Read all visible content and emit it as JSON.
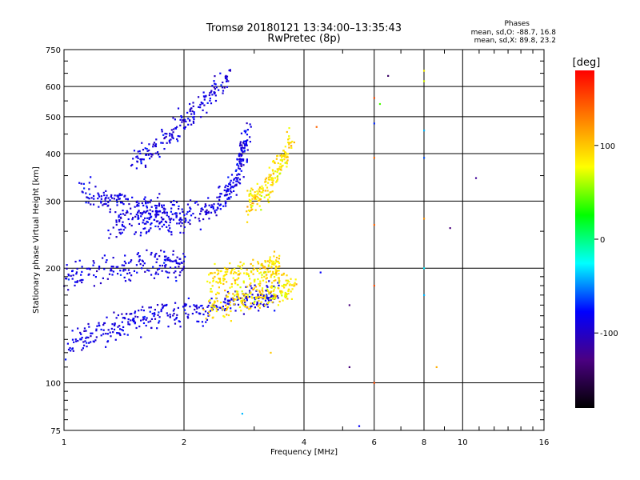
{
  "chart_data": {
    "type": "scatter",
    "title": "Tromsø 20180121 13:34:00–13:35:43",
    "subtitle": "RwPretec (8p)",
    "xlabel": "Frequency [MHz]",
    "ylabel": "Stationary phase Virtual Height [km]",
    "x_scale": "log",
    "y_scale": "log",
    "xlim": [
      1,
      16
    ],
    "ylim": [
      75,
      750
    ],
    "x_ticks": [
      1,
      2,
      4,
      6,
      8,
      10,
      16
    ],
    "y_ticks": [
      75,
      100,
      200,
      300,
      400,
      500,
      600,
      750
    ],
    "grid": true,
    "legend": {
      "heading": "Phases",
      "line1": "mean, sd,O: -88.7, 16.8",
      "line2": "mean, sd,X:  89.8, 23.2",
      "placement": "top-right"
    },
    "colorbar": {
      "label": "[deg]",
      "range": [
        -180,
        180
      ],
      "ticks": [
        -100,
        0,
        100
      ],
      "colors": [
        "#000000",
        "#4b0082",
        "#0000ff",
        "#00ffff",
        "#00ff00",
        "#ffff00",
        "#ff8000",
        "#ff0000"
      ]
    },
    "series": [
      {
        "mode": "O",
        "phase_mean": -88.7,
        "phase_sd": 16.8,
        "traces": [
          {
            "x": [
              1.0,
              1.2,
              1.4,
              1.6,
              1.9,
              2.3,
              2.7,
              3.1,
              3.4
            ],
            "y": [
              125,
              135,
              142,
              148,
              152,
              157,
              163,
              168,
              172
            ]
          },
          {
            "x": [
              1.0,
              1.2,
              1.5,
              1.8,
              2.0
            ],
            "y": [
              190,
              197,
              202,
              205,
              205
            ]
          },
          {
            "x": [
              1.3,
              1.6,
              1.9,
              2.2,
              2.5,
              2.7,
              2.8,
              2.9
            ],
            "y": [
              260,
              263,
              270,
              280,
              300,
              340,
              400,
              460
            ]
          },
          {
            "x": [
              1.1,
              1.3,
              1.5,
              1.7,
              1.9
            ],
            "y": [
              320,
              300,
              290,
              285,
              280
            ]
          },
          {
            "x": [
              1.5,
              1.7,
              2.0,
              2.3,
              2.6
            ],
            "y": [
              380,
              420,
              480,
              560,
              630
            ]
          }
        ]
      },
      {
        "mode": "X",
        "phase_mean": 89.8,
        "phase_sd": 23.2,
        "traces": [
          {
            "x": [
              2.3,
              2.6,
              2.9,
              3.2,
              3.5,
              3.8
            ],
            "y": [
              158,
              163,
              167,
              171,
              176,
              180
            ]
          },
          {
            "x": [
              2.3,
              2.6,
              3.0,
              3.3,
              3.5
            ],
            "y": [
              190,
              192,
              195,
              200,
              210
            ]
          },
          {
            "x": [
              2.9,
              3.1,
              3.3,
              3.5,
              3.7
            ],
            "y": [
              290,
              310,
              340,
              380,
              430
            ]
          }
        ]
      },
      {
        "mode": "other",
        "points": [
          {
            "x": 6.0,
            "y": 100,
            "phase": 150
          },
          {
            "x": 6.0,
            "y": 180,
            "phase": 150
          },
          {
            "x": 6.0,
            "y": 260,
            "phase": 140
          },
          {
            "x": 6.0,
            "y": 390,
            "phase": 140
          },
          {
            "x": 6.0,
            "y": 480,
            "phase": -70
          },
          {
            "x": 6.0,
            "y": 560,
            "phase": 150
          },
          {
            "x": 6.2,
            "y": 540,
            "phase": 40
          },
          {
            "x": 6.5,
            "y": 640,
            "phase": -140
          },
          {
            "x": 8.0,
            "y": 660,
            "phase": 80
          },
          {
            "x": 8.0,
            "y": 620,
            "phase": 70
          },
          {
            "x": 8.0,
            "y": 460,
            "phase": -40
          },
          {
            "x": 8.0,
            "y": 390,
            "phase": -60
          },
          {
            "x": 8.0,
            "y": 270,
            "phase": 120
          },
          {
            "x": 8.0,
            "y": 200,
            "phase": -30
          },
          {
            "x": 8.0,
            "y": 170,
            "phase": -40
          },
          {
            "x": 5.2,
            "y": 110,
            "phase": -130
          },
          {
            "x": 5.2,
            "y": 160,
            "phase": -130
          },
          {
            "x": 4.4,
            "y": 195,
            "phase": -80
          },
          {
            "x": 9.3,
            "y": 255,
            "phase": -130
          },
          {
            "x": 10.8,
            "y": 345,
            "phase": -120
          },
          {
            "x": 8.6,
            "y": 110,
            "phase": 110
          },
          {
            "x": 3.3,
            "y": 120,
            "phase": 100
          },
          {
            "x": 2.8,
            "y": 83,
            "phase": -40
          },
          {
            "x": 5.5,
            "y": 77,
            "phase": -80
          },
          {
            "x": 4.3,
            "y": 470,
            "phase": 140
          }
        ]
      }
    ]
  }
}
